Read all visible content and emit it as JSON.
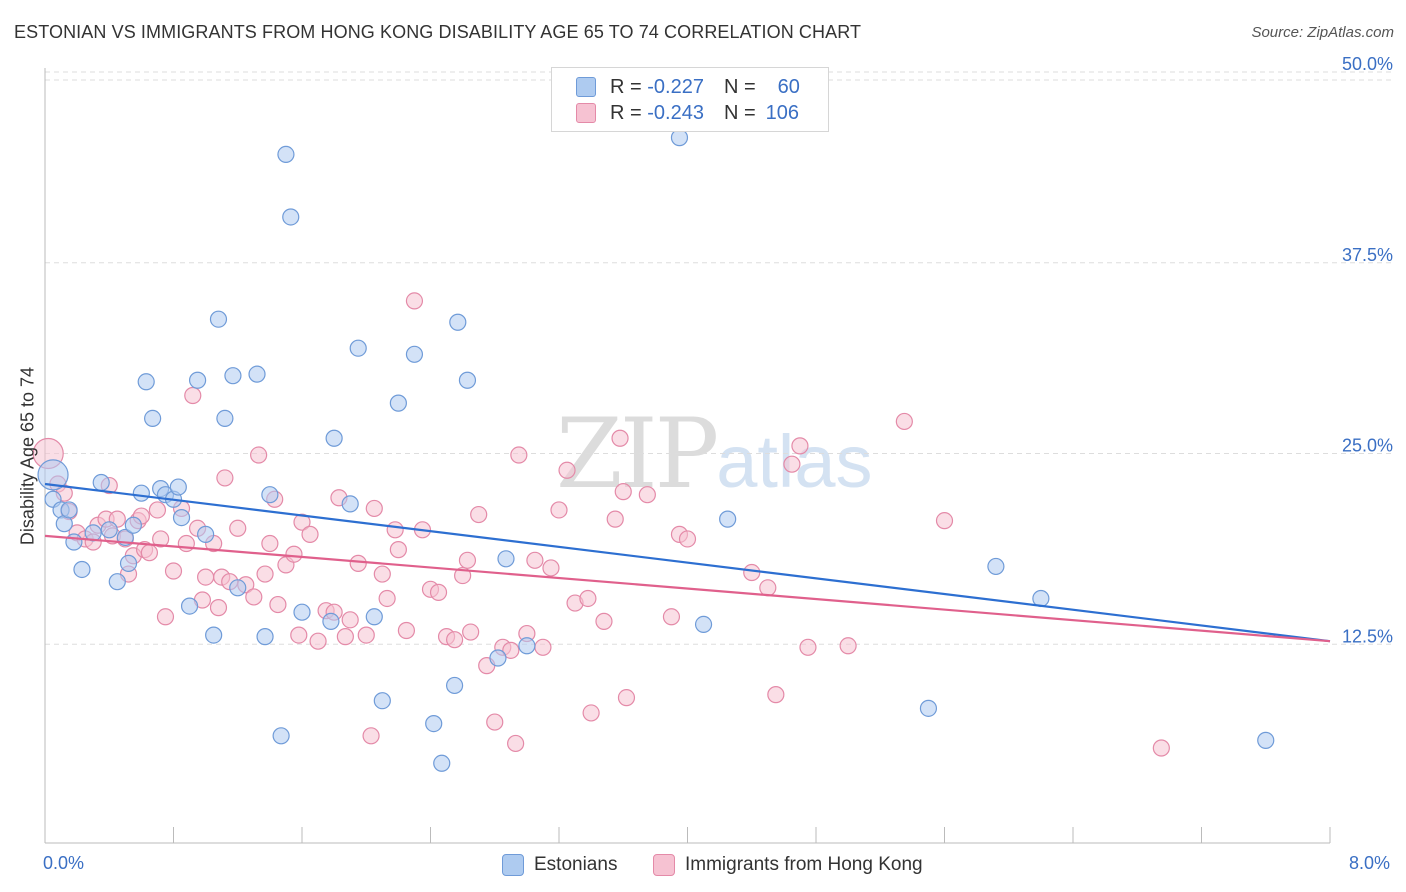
{
  "title": "ESTONIAN VS IMMIGRANTS FROM HONG KONG DISABILITY AGE 65 TO 74 CORRELATION CHART",
  "source": "Source: ZipAtlas.com",
  "watermark": {
    "zip": "ZIP",
    "atlas": "atlas"
  },
  "legend": {
    "rows": [
      {
        "r_label": "R =",
        "r_value": "-0.227",
        "n_label": "N =",
        "n_value": "60"
      },
      {
        "r_label": "R =",
        "r_value": "-0.243",
        "n_label": "N =",
        "n_value": "106"
      }
    ]
  },
  "bottom_legend": [
    "Estonians",
    "Immigrants from Hong Kong"
  ],
  "colors": {
    "blue_fill": "#aecbf0",
    "blue_stroke": "#6f9bd8",
    "blue_line": "#2d6fd1",
    "pink_fill": "#f6c2d2",
    "pink_stroke": "#e48aa8",
    "pink_line": "#e0608c",
    "grid": "#dddddd",
    "tick_text": "#3a6fc4"
  },
  "chart_data": {
    "type": "scatter",
    "title": "ESTONIAN VS IMMIGRANTS FROM HONG KONG DISABILITY AGE 65 TO 74 CORRELATION CHART",
    "xlabel": "",
    "ylabel": "Disability Age 65 to 74",
    "xlim": [
      0,
      8.0
    ],
    "ylim": [
      0,
      50
    ],
    "x_tick_labels": [
      "0.0%",
      "8.0%"
    ],
    "y_ticks": [
      12.5,
      25.0,
      37.5,
      50.0
    ],
    "y_tick_labels": [
      "12.5%",
      "25.0%",
      "37.5%",
      "50.0%"
    ],
    "grid": true,
    "legend_position": "top-center",
    "series": [
      {
        "name": "Estonians",
        "color": "#6f9bd8",
        "trend": {
          "x": [
            0.0,
            8.0
          ],
          "y": [
            23.0,
            12.7
          ]
        },
        "points": [
          [
            0.05,
            23.6
          ],
          [
            0.05,
            22.0
          ],
          [
            0.1,
            21.3
          ],
          [
            0.12,
            20.4
          ],
          [
            0.18,
            19.2
          ],
          [
            0.23,
            17.4
          ],
          [
            0.15,
            21.3
          ],
          [
            0.35,
            23.1
          ],
          [
            0.3,
            19.8
          ],
          [
            0.4,
            20.0
          ],
          [
            0.45,
            16.6
          ],
          [
            0.5,
            19.5
          ],
          [
            0.52,
            17.8
          ],
          [
            0.55,
            20.3
          ],
          [
            0.6,
            22.4
          ],
          [
            0.63,
            29.7
          ],
          [
            0.67,
            27.3
          ],
          [
            0.72,
            22.7
          ],
          [
            0.75,
            22.3
          ],
          [
            0.8,
            22.0
          ],
          [
            0.83,
            22.8
          ],
          [
            0.85,
            20.8
          ],
          [
            0.9,
            15.0
          ],
          [
            0.95,
            29.8
          ],
          [
            1.0,
            19.7
          ],
          [
            1.05,
            13.1
          ],
          [
            1.08,
            33.8
          ],
          [
            1.12,
            27.3
          ],
          [
            1.17,
            30.1
          ],
          [
            1.2,
            16.2
          ],
          [
            1.32,
            30.2
          ],
          [
            1.37,
            13.0
          ],
          [
            1.4,
            22.3
          ],
          [
            1.47,
            6.5
          ],
          [
            1.5,
            44.6
          ],
          [
            1.53,
            40.5
          ],
          [
            1.6,
            14.6
          ],
          [
            1.8,
            26.0
          ],
          [
            1.78,
            14.0
          ],
          [
            1.9,
            21.7
          ],
          [
            1.95,
            31.9
          ],
          [
            2.05,
            14.3
          ],
          [
            2.1,
            8.8
          ],
          [
            2.2,
            28.3
          ],
          [
            2.3,
            31.5
          ],
          [
            2.42,
            7.3
          ],
          [
            2.47,
            4.7
          ],
          [
            2.55,
            9.8
          ],
          [
            2.57,
            33.6
          ],
          [
            2.63,
            29.8
          ],
          [
            2.82,
            11.6
          ],
          [
            2.87,
            18.1
          ],
          [
            3.0,
            12.4
          ],
          [
            3.95,
            45.7
          ],
          [
            4.1,
            13.8
          ],
          [
            4.25,
            20.7
          ],
          [
            5.5,
            8.3
          ],
          [
            5.92,
            17.6
          ],
          [
            6.2,
            15.5
          ],
          [
            7.6,
            6.2
          ]
        ]
      },
      {
        "name": "Immigrants from Hong Kong",
        "color": "#e48aa8",
        "trend": {
          "x": [
            0.0,
            8.0
          ],
          "y": [
            19.6,
            12.7
          ]
        },
        "points": [
          [
            0.02,
            25.0
          ],
          [
            0.08,
            23.0
          ],
          [
            0.12,
            22.4
          ],
          [
            0.15,
            21.2
          ],
          [
            0.2,
            19.8
          ],
          [
            0.25,
            19.4
          ],
          [
            0.3,
            19.2
          ],
          [
            0.33,
            20.3
          ],
          [
            0.38,
            20.7
          ],
          [
            0.4,
            22.9
          ],
          [
            0.42,
            19.6
          ],
          [
            0.45,
            20.7
          ],
          [
            0.5,
            19.4
          ],
          [
            0.52,
            17.1
          ],
          [
            0.55,
            18.3
          ],
          [
            0.58,
            20.6
          ],
          [
            0.6,
            20.9
          ],
          [
            0.62,
            18.7
          ],
          [
            0.65,
            18.5
          ],
          [
            0.7,
            21.3
          ],
          [
            0.72,
            19.4
          ],
          [
            0.75,
            14.3
          ],
          [
            0.8,
            17.3
          ],
          [
            0.85,
            21.4
          ],
          [
            0.88,
            19.1
          ],
          [
            0.92,
            28.8
          ],
          [
            0.95,
            20.1
          ],
          [
            0.98,
            15.4
          ],
          [
            1.0,
            16.9
          ],
          [
            1.05,
            19.1
          ],
          [
            1.08,
            14.9
          ],
          [
            1.1,
            16.9
          ],
          [
            1.12,
            23.4
          ],
          [
            1.15,
            16.6
          ],
          [
            1.2,
            20.1
          ],
          [
            1.25,
            16.4
          ],
          [
            1.3,
            15.6
          ],
          [
            1.33,
            24.9
          ],
          [
            1.37,
            17.1
          ],
          [
            1.4,
            19.1
          ],
          [
            1.43,
            22.0
          ],
          [
            1.45,
            15.1
          ],
          [
            1.5,
            17.7
          ],
          [
            1.55,
            18.4
          ],
          [
            1.58,
            13.1
          ],
          [
            1.6,
            20.5
          ],
          [
            1.65,
            19.7
          ],
          [
            1.7,
            12.7
          ],
          [
            1.75,
            14.7
          ],
          [
            1.8,
            14.6
          ],
          [
            1.83,
            22.1
          ],
          [
            1.87,
            13.0
          ],
          [
            1.9,
            14.1
          ],
          [
            1.95,
            17.8
          ],
          [
            2.0,
            13.1
          ],
          [
            2.03,
            6.5
          ],
          [
            2.05,
            21.4
          ],
          [
            2.1,
            17.1
          ],
          [
            2.13,
            15.5
          ],
          [
            2.18,
            20.0
          ],
          [
            2.2,
            18.7
          ],
          [
            2.25,
            13.4
          ],
          [
            2.3,
            35.0
          ],
          [
            2.35,
            20.0
          ],
          [
            2.4,
            16.1
          ],
          [
            2.45,
            15.9
          ],
          [
            2.5,
            13.0
          ],
          [
            2.55,
            12.8
          ],
          [
            2.6,
            17.0
          ],
          [
            2.63,
            18.0
          ],
          [
            2.65,
            13.3
          ],
          [
            2.7,
            21.0
          ],
          [
            2.75,
            11.1
          ],
          [
            2.8,
            7.4
          ],
          [
            2.85,
            12.3
          ],
          [
            2.9,
            12.1
          ],
          [
            2.93,
            6.0
          ],
          [
            2.95,
            24.9
          ],
          [
            3.0,
            13.2
          ],
          [
            3.05,
            18.0
          ],
          [
            3.1,
            12.3
          ],
          [
            3.15,
            17.5
          ],
          [
            3.2,
            21.3
          ],
          [
            3.25,
            23.9
          ],
          [
            3.3,
            15.2
          ],
          [
            3.38,
            15.5
          ],
          [
            3.4,
            8.0
          ],
          [
            3.48,
            14.0
          ],
          [
            3.55,
            20.7
          ],
          [
            3.58,
            26.0
          ],
          [
            3.6,
            22.5
          ],
          [
            3.62,
            9.0
          ],
          [
            3.75,
            22.3
          ],
          [
            3.9,
            14.3
          ],
          [
            3.95,
            19.7
          ],
          [
            4.0,
            19.4
          ],
          [
            4.4,
            17.2
          ],
          [
            4.5,
            16.2
          ],
          [
            4.55,
            9.2
          ],
          [
            4.65,
            24.3
          ],
          [
            4.7,
            25.5
          ],
          [
            4.75,
            12.3
          ],
          [
            5.0,
            12.4
          ],
          [
            5.35,
            27.1
          ],
          [
            5.6,
            20.6
          ],
          [
            6.95,
            5.7
          ]
        ]
      }
    ]
  }
}
